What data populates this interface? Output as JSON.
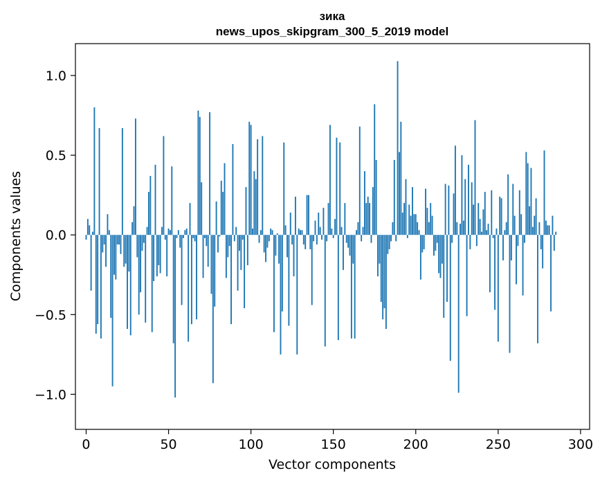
{
  "chart_data": {
    "type": "bar",
    "title": "зика",
    "subtitle": "news_upos_skipgram_300_5_2019 model",
    "xlabel": "Vector components",
    "ylabel": "Components values",
    "xlim": [
      -6.5,
      305.5
    ],
    "ylim": [
      -1.22,
      1.2
    ],
    "xticks": [
      0,
      50,
      100,
      150,
      200,
      250,
      300
    ],
    "xtick_labels": [
      "0",
      "50",
      "100",
      "150",
      "200",
      "250",
      "300"
    ],
    "yticks": [
      -1.0,
      -0.5,
      0.0,
      0.5,
      1.0
    ],
    "ytick_labels": [
      "−1.0",
      "−0.5",
      "0.0",
      "0.5",
      "1.0"
    ],
    "bar_color": "#1f77b4",
    "grid": false,
    "legend": "none",
    "values": [
      -0.03,
      0.1,
      0.06,
      -0.35,
      0.02,
      0.8,
      -0.62,
      -0.56,
      0.67,
      -0.65,
      -0.11,
      -0.06,
      -0.2,
      0.13,
      0.03,
      -0.52,
      -0.95,
      -0.25,
      -0.28,
      -0.06,
      -0.06,
      -0.12,
      0.67,
      -0.2,
      -0.18,
      -0.59,
      -0.23,
      -0.63,
      0.08,
      0.18,
      0.73,
      -0.14,
      -0.5,
      -0.36,
      -0.1,
      -0.05,
      -0.55,
      0.05,
      0.27,
      0.37,
      -0.61,
      -0.29,
      0.44,
      -0.26,
      -0.19,
      -0.24,
      0.05,
      0.62,
      -0.03,
      -0.26,
      0.04,
      0.03,
      0.43,
      -0.68,
      -1.02,
      -0.02,
      0.03,
      -0.08,
      -0.44,
      -0.02,
      0.03,
      0.04,
      -0.67,
      0.2,
      -0.56,
      -0.02,
      -0.04,
      -0.53,
      0.78,
      0.74,
      0.33,
      -0.27,
      -0.02,
      -0.07,
      -0.2,
      0.77,
      -0.37,
      -0.93,
      -0.45,
      0.21,
      -0.11,
      -0.01,
      0.34,
      0.27,
      0.45,
      -0.27,
      -0.14,
      -0.07,
      -0.56,
      0.57,
      -0.04,
      0.05,
      -0.35,
      -0.1,
      -0.22,
      -0.03,
      -0.46,
      0.3,
      -0.19,
      0.71,
      0.69,
      0.04,
      0.4,
      0.35,
      0.6,
      -0.05,
      0.03,
      0.62,
      -0.11,
      -0.17,
      -0.08,
      -0.04,
      0.04,
      0.03,
      -0.61,
      -0.13,
      0.01,
      -0.18,
      -0.75,
      -0.48,
      0.58,
      0.06,
      -0.14,
      -0.57,
      0.14,
      -0.06,
      -0.26,
      0.24,
      -0.75,
      0.04,
      0.03,
      0.03,
      -0.06,
      -0.09,
      0.25,
      0.25,
      -0.09,
      -0.44,
      -0.04,
      0.09,
      -0.06,
      0.14,
      0.05,
      -0.03,
      0.17,
      -0.7,
      -0.04,
      0.2,
      0.69,
      0.04,
      -0.02,
      0.1,
      0.61,
      -0.66,
      0.58,
      0.05,
      -0.22,
      0.2,
      -0.05,
      -0.08,
      -0.13,
      -0.65,
      -0.18,
      -0.65,
      0.03,
      0.08,
      0.68,
      -0.04,
      0.05,
      0.4,
      0.2,
      0.24,
      0.2,
      -0.05,
      0.3,
      0.82,
      0.47,
      -0.26,
      -0.18,
      -0.42,
      -0.53,
      -0.46,
      -0.59,
      -0.12,
      -0.09,
      -0.04,
      0.08,
      0.47,
      -0.04,
      1.09,
      0.52,
      0.71,
      0.14,
      0.2,
      0.35,
      -0.02,
      0.19,
      0.12,
      0.3,
      0.13,
      0.13,
      0.08,
      0.03,
      -0.28,
      -0.11,
      -0.09,
      0.29,
      0.17,
      0.08,
      0.2,
      0.12,
      -0.13,
      -0.1,
      -0.05,
      -0.24,
      -0.27,
      -0.18,
      -0.52,
      0.32,
      -0.42,
      0.31,
      -0.79,
      -0.05,
      0.26,
      0.56,
      0.08,
      -0.99,
      0.07,
      0.5,
      0.09,
      0.35,
      -0.51,
      0.44,
      -0.09,
      0.33,
      0.19,
      0.72,
      -0.07,
      0.2,
      0.1,
      0.02,
      0.16,
      0.27,
      0.03,
      0.07,
      -0.36,
      0.28,
      -0.02,
      -0.47,
      0.04,
      -0.67,
      0.24,
      0.23,
      -0.16,
      0.03,
      0.08,
      0.38,
      -0.74,
      -0.16,
      0.32,
      0.12,
      -0.31,
      -0.07,
      0.28,
      0.13,
      -0.38,
      -0.05,
      0.52,
      0.45,
      0.18,
      0.42,
      0.05,
      0.12,
      0.23,
      -0.68,
      0.08,
      -0.09,
      -0.21,
      0.53,
      0.09,
      0.06,
      0.06,
      -0.48,
      0.12,
      -0.1,
      0.02
    ]
  }
}
